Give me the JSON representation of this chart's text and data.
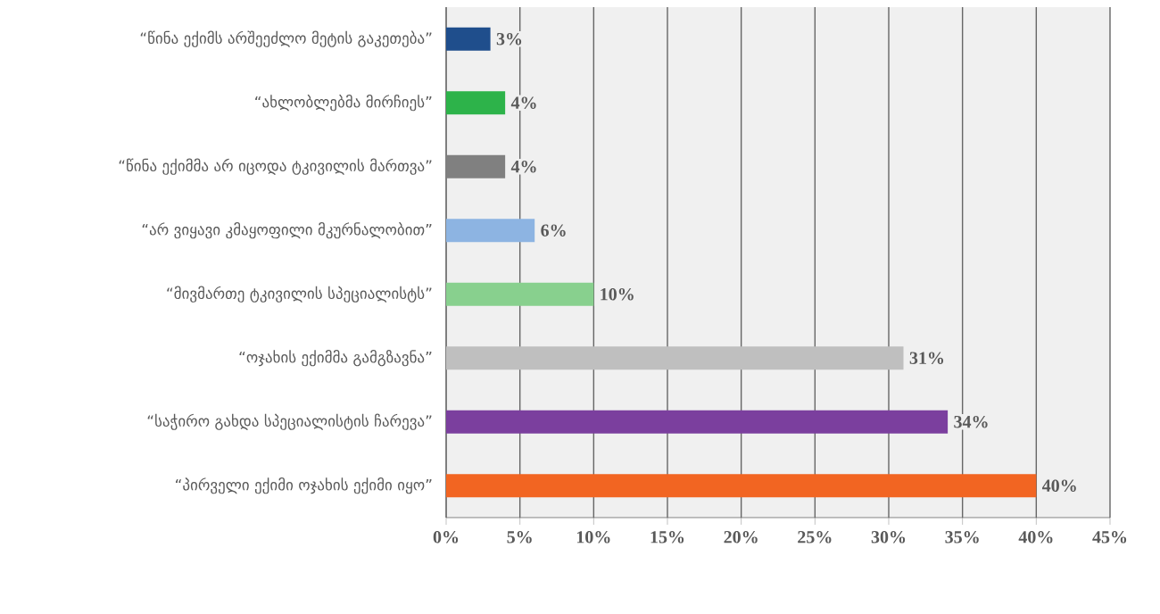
{
  "chart_data": {
    "type": "bar",
    "orientation": "horizontal",
    "categories": [
      "“წინა ექიმს არშეეძლო მეტის გაკეთება”",
      "“ახლობლებმა მირჩიეს”",
      "“წინა ექიმმა არ იცოდა ტკივილის მართვა”",
      "“არ ვიყავი კმაყოფილი მკურნალობით”",
      "“მივმართე ტკივილის სპეციალისტს”",
      "“ოჯახის ექიმმა გამგზავნა”",
      "“საჭირო გახდა სპეციალისტის ჩარევა”",
      "“პირველი ექიმი ოჯახის ექიმი იყო”"
    ],
    "values": [
      3,
      4,
      4,
      6,
      10,
      31,
      34,
      40
    ],
    "value_labels": [
      "3%",
      "4%",
      "4%",
      "6%",
      "10%",
      "31%",
      "34%",
      "40%"
    ],
    "colors": [
      "#1f4e8c",
      "#2db34a",
      "#808080",
      "#8db4e2",
      "#88d08e",
      "#bfbfbf",
      "#7b3f9e",
      "#f26522"
    ],
    "xlim": [
      0,
      45
    ],
    "xticks": [
      {
        "value": 0,
        "label": "0%"
      },
      {
        "value": 5,
        "label": "5%"
      },
      {
        "value": 10,
        "label": "10%"
      },
      {
        "value": 15,
        "label": "15%"
      },
      {
        "value": 20,
        "label": "20%"
      },
      {
        "value": 25,
        "label": "25%"
      },
      {
        "value": 30,
        "label": "30%"
      },
      {
        "value": 35,
        "label": "35%"
      },
      {
        "value": 40,
        "label": "40%"
      },
      {
        "value": 45,
        "label": "45%"
      }
    ],
    "grid": "x"
  }
}
